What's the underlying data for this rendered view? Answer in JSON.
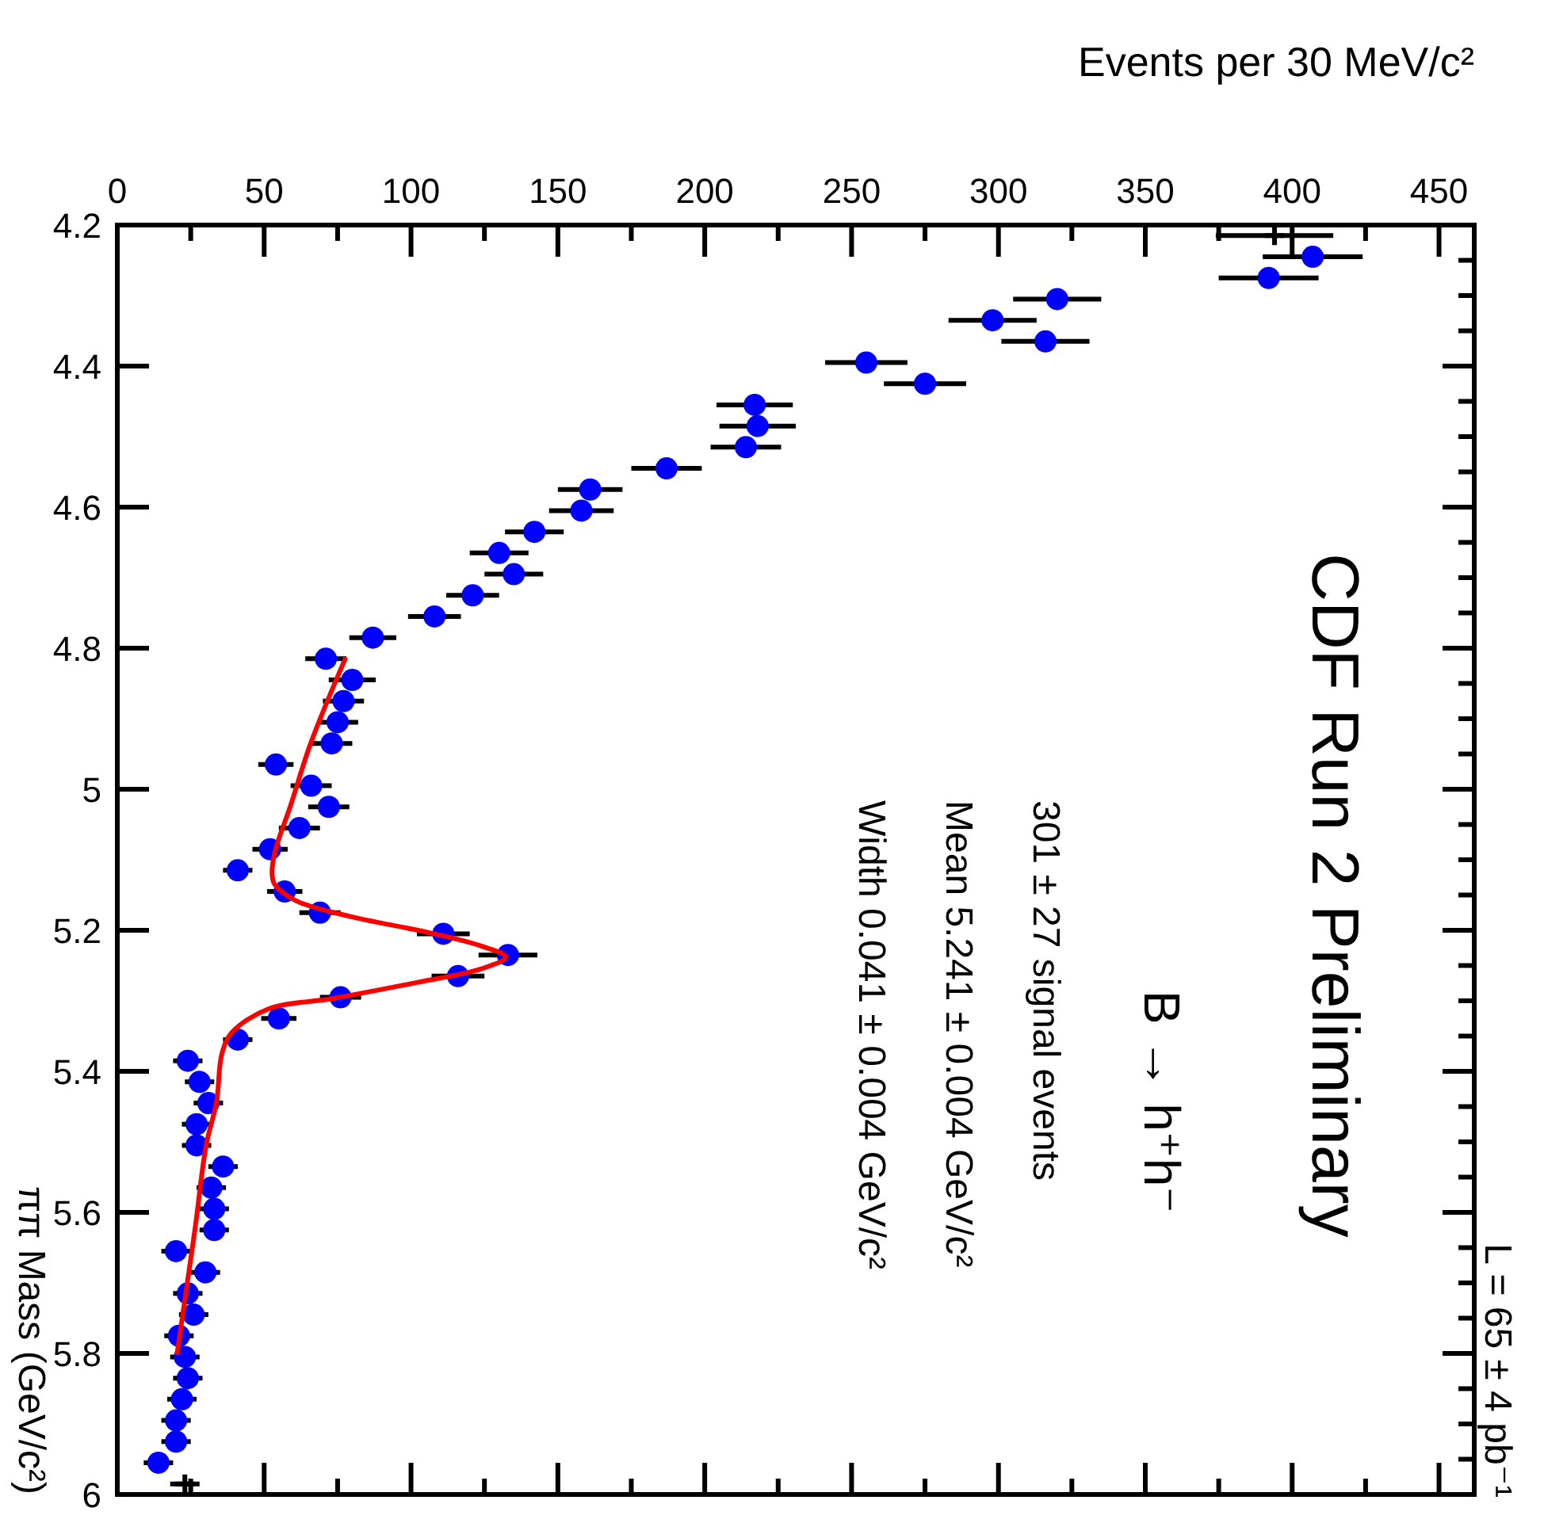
{
  "chart_data": {
    "type": "scatter",
    "title": "CDF Run 2 Preliminary",
    "xlabel": "Events per 30 MeV/c²",
    "ylabel": "ππ Mass (GeV/c²)",
    "annotations": [
      "B → h⁺h⁻",
      "301 ± 27 signal events",
      "Mean 5.241 ± 0.004 GeV/c²",
      "Width 0.041 ± 0.004 GeV/c²",
      "L = 65 ± 4 pb⁻¹"
    ],
    "xlim": [
      0,
      462
    ],
    "xticks": [
      0,
      50,
      100,
      150,
      200,
      250,
      300,
      350,
      400,
      450
    ],
    "ylim": [
      6,
      4.2
    ],
    "yticks": [
      4.2,
      4.4,
      4.6,
      4.8,
      5,
      5.2,
      5.4,
      5.6,
      5.8,
      6
    ],
    "marker": "circle",
    "series": [
      {
        "type": "scatter",
        "color": "#0000ff",
        "values": [
          4.245,
          4.275,
          4.305,
          4.335,
          4.365,
          4.395,
          4.425,
          4.455,
          4.485,
          4.515,
          4.545,
          4.575,
          4.605,
          4.635,
          4.665,
          4.695,
          4.725,
          4.755,
          4.785,
          4.815,
          4.845,
          4.875,
          4.905,
          4.935,
          4.965,
          4.995,
          5.025,
          5.055,
          5.085,
          5.115,
          5.145,
          5.175,
          5.205,
          5.235,
          5.265,
          5.295,
          5.325,
          5.355,
          5.385,
          5.415,
          5.445,
          5.475,
          5.505,
          5.535,
          5.565,
          5.595,
          5.625,
          5.655,
          5.685,
          5.715,
          5.745,
          5.775,
          5.805,
          5.835,
          5.865,
          5.895,
          5.925,
          5.955
        ],
        "x": [
          407,
          392,
          320,
          298,
          316,
          255,
          275,
          217,
          218,
          214,
          187,
          161,
          158,
          142,
          130,
          135,
          121,
          108,
          87,
          71,
          80,
          77,
          75,
          73,
          54,
          66,
          72,
          62,
          52,
          41,
          57,
          69,
          111,
          133,
          116,
          76,
          55,
          41,
          24,
          28,
          31,
          27,
          27,
          36,
          32,
          33,
          33,
          20,
          30,
          24,
          26,
          21,
          23,
          24,
          22,
          20,
          20,
          14
        ],
        "xerrors": [
          17,
          17,
          15,
          15,
          15,
          14,
          14,
          13,
          13,
          12,
          12,
          11,
          11,
          10,
          10,
          10,
          9,
          9,
          8,
          7,
          8,
          7,
          7,
          7,
          6,
          7,
          7,
          7,
          6,
          5,
          6,
          7,
          9,
          10,
          9,
          7,
          6,
          5,
          5,
          5,
          5,
          5,
          5,
          5,
          5,
          5,
          5,
          5,
          5,
          5,
          5,
          5,
          5,
          5,
          5,
          5,
          5,
          5
        ]
      },
      {
        "type": "scatter",
        "marker": "cross",
        "color": "#000000",
        "x": [
          394,
          23
        ],
        "values": [
          4.215,
          5.985
        ],
        "xerrors": [
          20,
          5
        ]
      },
      {
        "type": "line",
        "marker": "none",
        "color": "#ff0000",
        "values": [
          4.813,
          4.933,
          5.023,
          5.09,
          5.12,
          5.135,
          5.158,
          5.18,
          5.203,
          5.222,
          5.238,
          5.255,
          5.274,
          5.297,
          5.311,
          5.345,
          5.375,
          5.443,
          5.506,
          5.619,
          5.724,
          5.802
        ],
        "x": [
          77.8,
          66,
          59,
          53.6,
          52.7,
          53.6,
          60.8,
          78.8,
          105.7,
          123.7,
          132.3,
          123.7,
          102,
          73,
          51.8,
          39,
          35.6,
          33.8,
          30.2,
          26.6,
          23,
          20.3
        ]
      }
    ]
  }
}
